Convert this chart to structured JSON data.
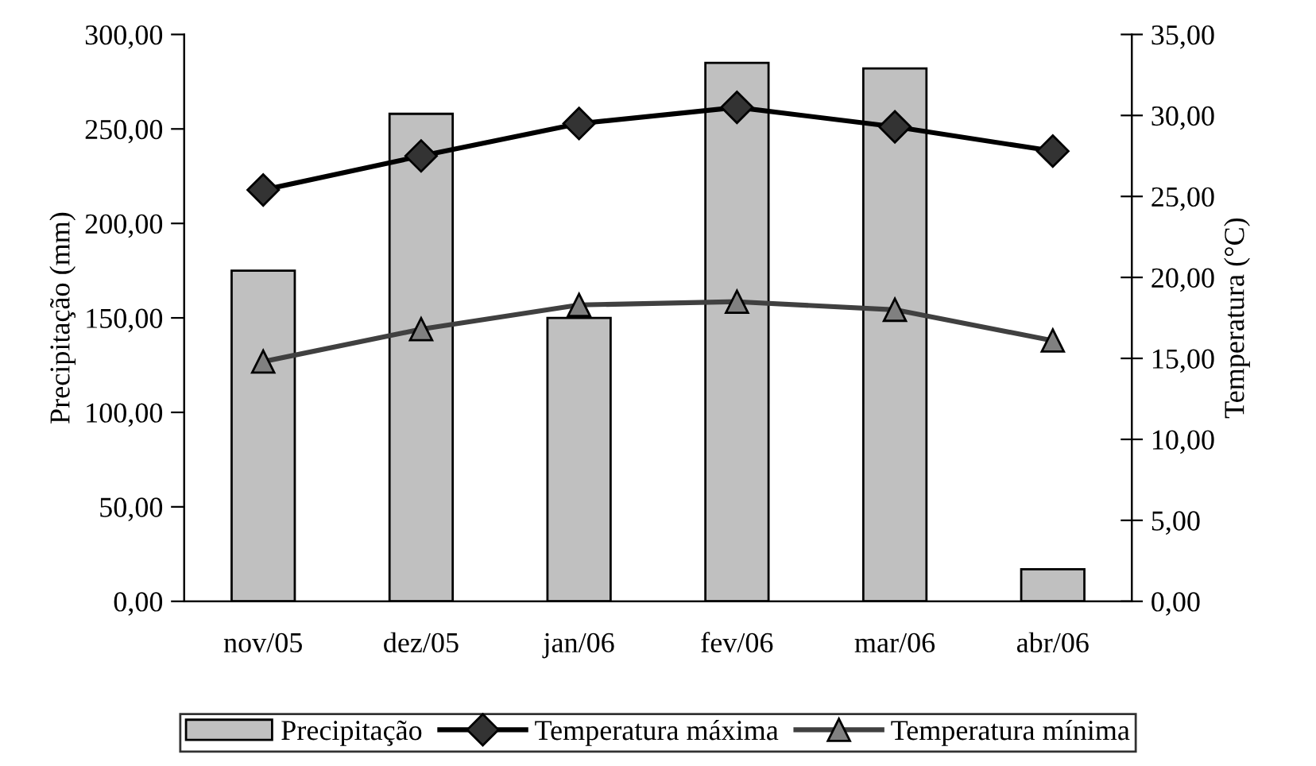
{
  "chart_data": {
    "type": "bar",
    "ylabel": "Precipitação (mm)",
    "y2label": "Temperatura (°C)",
    "categories": [
      "nov/05",
      "dez/05",
      "jan/06",
      "fev/06",
      "mar/06",
      "abr/06"
    ],
    "series": [
      {
        "name": "Precipitação",
        "color": "#c0c0c0",
        "values": [
          175,
          258,
          150,
          285,
          282,
          17
        ]
      },
      {
        "name": "Temperatura máxima",
        "type": "line",
        "axis": "y2",
        "color": "#000000",
        "marker": "diamond",
        "values": [
          25.4,
          27.5,
          29.5,
          30.5,
          29.3,
          27.8
        ]
      },
      {
        "name": "Temperatura mínima",
        "type": "line",
        "axis": "y2",
        "color": "#404040",
        "marker": "triangle",
        "values": [
          14.8,
          16.8,
          18.3,
          18.5,
          18.0,
          16.1
        ]
      }
    ],
    "ylim": [
      0,
      300
    ],
    "yticks": [
      {
        "value": 0,
        "label": "0,00"
      },
      {
        "value": 50,
        "label": "50,00"
      },
      {
        "value": 100,
        "label": "100,00"
      },
      {
        "value": 150,
        "label": "150,00"
      },
      {
        "value": 200,
        "label": "200,00"
      },
      {
        "value": 250,
        "label": "250,00"
      },
      {
        "value": 300,
        "label": "300,00"
      }
    ],
    "y2lim": [
      0,
      35
    ],
    "y2ticks": [
      {
        "value": 0,
        "label": "0,00"
      },
      {
        "value": 5,
        "label": "5,00"
      },
      {
        "value": 10,
        "label": "10,00"
      },
      {
        "value": 15,
        "label": "15,00"
      },
      {
        "value": 20,
        "label": "20,00"
      },
      {
        "value": 25,
        "label": "25,00"
      },
      {
        "value": 30,
        "label": "30,00"
      },
      {
        "value": 35,
        "label": "35,00"
      }
    ],
    "legend": "bottom",
    "grid": false
  }
}
